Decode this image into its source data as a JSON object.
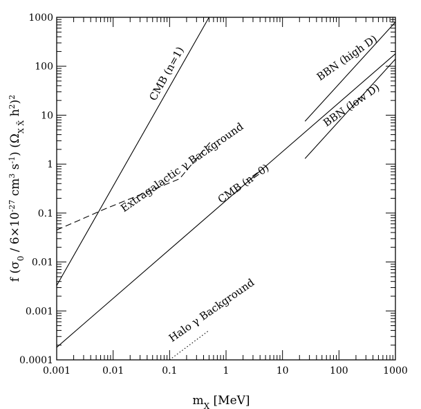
{
  "chart_data": {
    "type": "line",
    "x_scale": "log",
    "y_scale": "log",
    "xlim": [
      0.001,
      1000
    ],
    "ylim": [
      0.0001,
      1000
    ],
    "grid": false,
    "xlabel": "m_X [MeV]",
    "ylabel": "f (σ_0 / 6×10^-27 cm^3 s^-1) (Ω_{X X̄} h^2)^2",
    "x_ticks": [
      "0.001",
      "0.01",
      "0.1",
      "1",
      "10",
      "100",
      "1000"
    ],
    "y_ticks": [
      "0.0001",
      "0.001",
      "0.01",
      "0.1",
      "1",
      "10",
      "100",
      "1000"
    ],
    "series": [
      {
        "name": "CMB (n=1)",
        "style": "solid",
        "points": [
          [
            0.001,
            0.0033
          ],
          [
            0.5,
            1000
          ]
        ]
      },
      {
        "name": "CMB (n=0)",
        "style": "solid",
        "points": [
          [
            0.001,
            0.00018
          ],
          [
            1000,
            180
          ]
        ]
      },
      {
        "name": "Extragalactic γ Background",
        "style": "dashed",
        "points": [
          [
            0.001,
            0.045
          ],
          [
            0.007,
            0.12
          ],
          [
            0.15,
            0.5
          ],
          [
            0.55,
            3
          ]
        ]
      },
      {
        "name": "BBN (high D)",
        "style": "solid",
        "points": [
          [
            25,
            7.5
          ],
          [
            1000,
            800
          ]
        ]
      },
      {
        "name": "BBN (low D)",
        "style": "solid",
        "points": [
          [
            25,
            1.3
          ],
          [
            1000,
            140
          ]
        ]
      },
      {
        "name": "Halo γ Background",
        "style": "dotted",
        "points": [
          [
            0.1,
            0.0001
          ],
          [
            0.5,
            0.0004
          ]
        ]
      }
    ],
    "annotations": [
      {
        "text": "CMB (n=1)",
        "x": 0.1,
        "y": 65,
        "angle": -61
      },
      {
        "text": "CMB (n=0)",
        "x": 2.2,
        "y": 0.35,
        "angle": -35
      },
      {
        "text": "Extragalactic γ Background",
        "x": 0.18,
        "y": 0.75,
        "angle": -35
      },
      {
        "text": "BBN (high D)",
        "x": 150,
        "y": 130,
        "angle": -35
      },
      {
        "text": "BBN (low D)",
        "x": 180,
        "y": 14,
        "angle": -35
      },
      {
        "text": "Halo γ Background",
        "x": 0.6,
        "y": 0.0009,
        "angle": -35
      }
    ]
  }
}
